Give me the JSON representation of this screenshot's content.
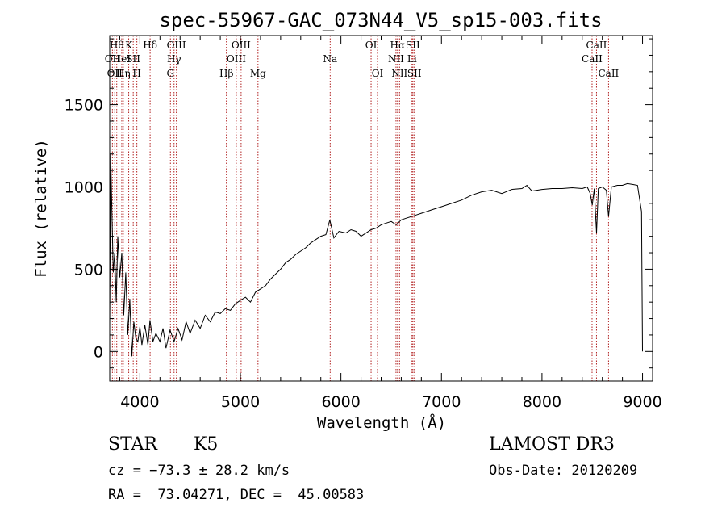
{
  "chart_data": {
    "type": "line",
    "title": "spec-55967-GAC_073N44_V5_sp15-003.fits",
    "xlabel": "Wavelength (Å)",
    "ylabel": "Flux (relative)",
    "xlim": [
      3700,
      9100
    ],
    "ylim": [
      -180,
      1920
    ],
    "xticks": [
      4000,
      5000,
      6000,
      7000,
      8000,
      9000
    ],
    "yticks": [
      0,
      500,
      1000,
      1500
    ],
    "xticklabels": [
      "4000",
      "5000",
      "6000",
      "7000",
      "8000",
      "9000"
    ],
    "yticklabels": [
      "0",
      "500",
      "1000",
      "1500"
    ],
    "series": [
      {
        "name": "flux",
        "color": "#000000",
        "points": [
          [
            3700,
            150
          ],
          [
            3710,
            1200
          ],
          [
            3720,
            900
          ],
          [
            3735,
            480
          ],
          [
            3750,
            600
          ],
          [
            3765,
            300
          ],
          [
            3780,
            700
          ],
          [
            3800,
            450
          ],
          [
            3820,
            600
          ],
          [
            3840,
            220
          ],
          [
            3860,
            480
          ],
          [
            3880,
            100
          ],
          [
            3900,
            320
          ],
          [
            3920,
            -30
          ],
          [
            3940,
            180
          ],
          [
            3960,
            80
          ],
          [
            3980,
            60
          ],
          [
            4000,
            150
          ],
          [
            4020,
            40
          ],
          [
            4050,
            160
          ],
          [
            4080,
            40
          ],
          [
            4100,
            190
          ],
          [
            4130,
            60
          ],
          [
            4160,
            110
          ],
          [
            4200,
            60
          ],
          [
            4230,
            140
          ],
          [
            4260,
            20
          ],
          [
            4300,
            130
          ],
          [
            4340,
            60
          ],
          [
            4380,
            140
          ],
          [
            4420,
            70
          ],
          [
            4460,
            180
          ],
          [
            4500,
            110
          ],
          [
            4550,
            190
          ],
          [
            4600,
            140
          ],
          [
            4650,
            220
          ],
          [
            4700,
            180
          ],
          [
            4750,
            240
          ],
          [
            4800,
            230
          ],
          [
            4850,
            260
          ],
          [
            4900,
            250
          ],
          [
            4950,
            290
          ],
          [
            5000,
            310
          ],
          [
            5050,
            330
          ],
          [
            5100,
            300
          ],
          [
            5150,
            360
          ],
          [
            5200,
            380
          ],
          [
            5250,
            400
          ],
          [
            5300,
            440
          ],
          [
            5350,
            470
          ],
          [
            5400,
            500
          ],
          [
            5450,
            540
          ],
          [
            5500,
            560
          ],
          [
            5550,
            590
          ],
          [
            5600,
            610
          ],
          [
            5650,
            630
          ],
          [
            5700,
            660
          ],
          [
            5750,
            680
          ],
          [
            5800,
            700
          ],
          [
            5850,
            710
          ],
          [
            5890,
            800
          ],
          [
            5930,
            690
          ],
          [
            5980,
            730
          ],
          [
            6050,
            720
          ],
          [
            6100,
            740
          ],
          [
            6150,
            730
          ],
          [
            6200,
            700
          ],
          [
            6250,
            720
          ],
          [
            6300,
            740
          ],
          [
            6350,
            750
          ],
          [
            6400,
            770
          ],
          [
            6450,
            780
          ],
          [
            6500,
            790
          ],
          [
            6550,
            770
          ],
          [
            6600,
            800
          ],
          [
            6650,
            810
          ],
          [
            6700,
            820
          ],
          [
            6750,
            830
          ],
          [
            6800,
            840
          ],
          [
            6850,
            850
          ],
          [
            6900,
            860
          ],
          [
            6950,
            870
          ],
          [
            7000,
            880
          ],
          [
            7100,
            900
          ],
          [
            7200,
            920
          ],
          [
            7300,
            950
          ],
          [
            7400,
            970
          ],
          [
            7500,
            980
          ],
          [
            7600,
            960
          ],
          [
            7700,
            985
          ],
          [
            7800,
            990
          ],
          [
            7850,
            1010
          ],
          [
            7900,
            975
          ],
          [
            8000,
            985
          ],
          [
            8100,
            990
          ],
          [
            8200,
            990
          ],
          [
            8300,
            995
          ],
          [
            8400,
            990
          ],
          [
            8450,
            1000
          ],
          [
            8480,
            960
          ],
          [
            8500,
            890
          ],
          [
            8520,
            990
          ],
          [
            8542,
            720
          ],
          [
            8560,
            990
          ],
          [
            8600,
            1000
          ],
          [
            8640,
            980
          ],
          [
            8662,
            820
          ],
          [
            8690,
            1000
          ],
          [
            8750,
            1010
          ],
          [
            8800,
            1010
          ],
          [
            8850,
            1020
          ],
          [
            8900,
            1015
          ],
          [
            8950,
            1010
          ],
          [
            8990,
            850
          ],
          [
            9000,
            0
          ]
        ]
      }
    ],
    "lines": [
      {
        "wl": 3727,
        "label": "OII",
        "row": 1
      },
      {
        "wl": 3750,
        "label": "OII",
        "row": 2
      },
      {
        "wl": 3770,
        "label": "Hθ",
        "row": 0
      },
      {
        "wl": 3820,
        "label": "HeI",
        "row": 1
      },
      {
        "wl": 3835,
        "label": "Hη",
        "row": 2
      },
      {
        "wl": 3889,
        "label": "K",
        "row": 0
      },
      {
        "wl": 3934,
        "label": "SII",
        "row": 1
      },
      {
        "wl": 3970,
        "label": "H",
        "row": 2
      },
      {
        "wl": 4102,
        "label": "Hδ",
        "row": 0
      },
      {
        "wl": 4304,
        "label": "G",
        "row": 2
      },
      {
        "wl": 4340,
        "label": "Hγ",
        "row": 1
      },
      {
        "wl": 4363,
        "label": "OIII",
        "row": 0
      },
      {
        "wl": 4861,
        "label": "Hβ",
        "row": 2
      },
      {
        "wl": 4959,
        "label": "OIII",
        "row": 1
      },
      {
        "wl": 5007,
        "label": "OIII",
        "row": 0
      },
      {
        "wl": 5175,
        "label": "Mg",
        "row": 2
      },
      {
        "wl": 5893,
        "label": "Na",
        "row": 1
      },
      {
        "wl": 6300,
        "label": "OI",
        "row": 0
      },
      {
        "wl": 6364,
        "label": "OI",
        "row": 2
      },
      {
        "wl": 6548,
        "label": "NII",
        "row": 1
      },
      {
        "wl": 6563,
        "label": "Hα",
        "row": 0
      },
      {
        "wl": 6583,
        "label": "NII",
        "row": 2
      },
      {
        "wl": 6707,
        "label": "Li",
        "row": 1
      },
      {
        "wl": 6716,
        "label": "SII",
        "row": 0
      },
      {
        "wl": 6731,
        "label": "SII",
        "row": 2
      },
      {
        "wl": 8498,
        "label": "CaII",
        "row": 1
      },
      {
        "wl": 8542,
        "label": "CaII",
        "row": 0
      },
      {
        "wl": 8662,
        "label": "CaII",
        "row": 2
      }
    ],
    "line_color": "#b22222"
  },
  "footer": {
    "object_class": "STAR",
    "subclass": "K5",
    "survey": "LAMOST DR3",
    "velocity": "cz = −73.3 ± 28.2 km/s",
    "obs_date": "Obs-Date: 20120209",
    "coords": "RA =  73.04271, DEC =  45.00583"
  }
}
